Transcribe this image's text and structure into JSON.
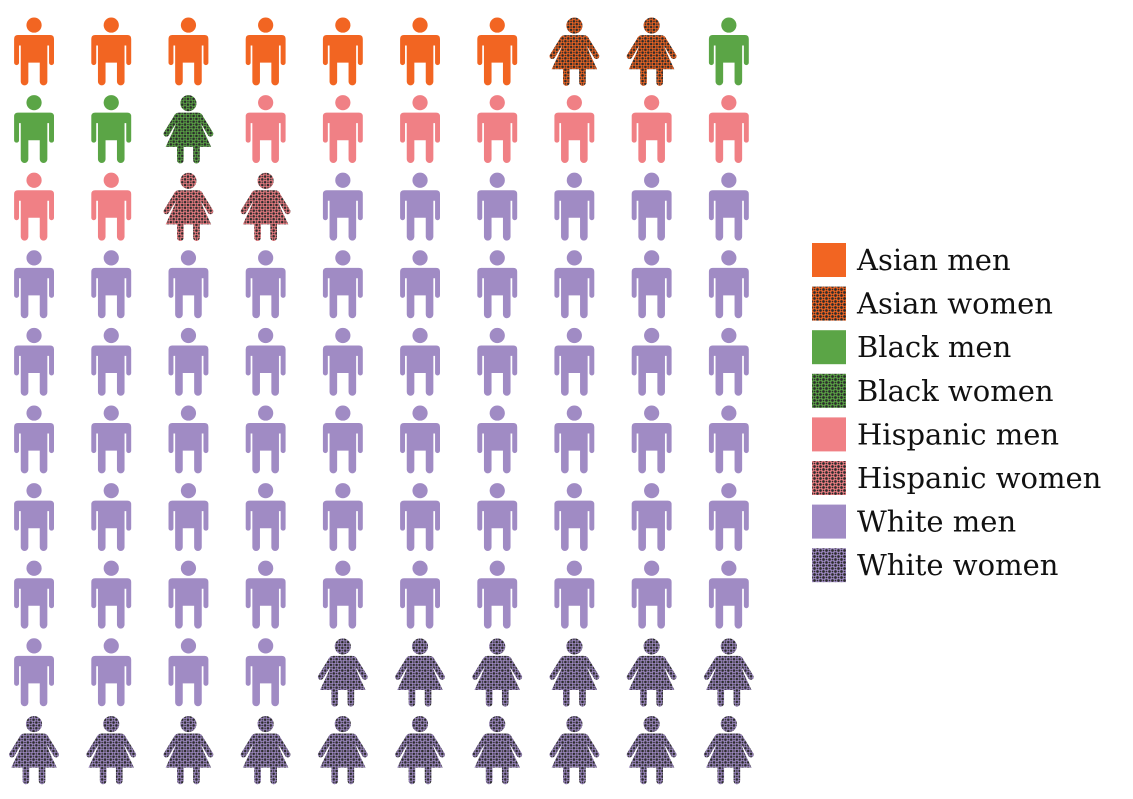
{
  "chart_data": {
    "type": "waffle",
    "grid": {
      "rows": 10,
      "columns": 10
    },
    "legend_position": "right",
    "categories": [
      {
        "name": "Asian men",
        "color": "#f26522",
        "figure": "man",
        "pattern": "solid",
        "count": 7
      },
      {
        "name": "Asian women",
        "color": "#f26522",
        "figure": "woman",
        "pattern": "dotted",
        "count": 2
      },
      {
        "name": "Black men",
        "color": "#5ba546",
        "figure": "man",
        "pattern": "solid",
        "count": 3
      },
      {
        "name": "Black women",
        "color": "#5ba546",
        "figure": "woman",
        "pattern": "dotted",
        "count": 1
      },
      {
        "name": "Hispanic men",
        "color": "#f08085",
        "figure": "man",
        "pattern": "solid",
        "count": 9
      },
      {
        "name": "Hispanic women",
        "color": "#f08085",
        "figure": "woman",
        "pattern": "dotted",
        "count": 2
      },
      {
        "name": "White men",
        "color": "#a08bc4",
        "figure": "man",
        "pattern": "solid",
        "count": 60
      },
      {
        "name": "White women",
        "color": "#a08bc4",
        "figure": "woman",
        "pattern": "dotted",
        "count": 16
      }
    ],
    "dot_color": "#2b2b2b"
  }
}
